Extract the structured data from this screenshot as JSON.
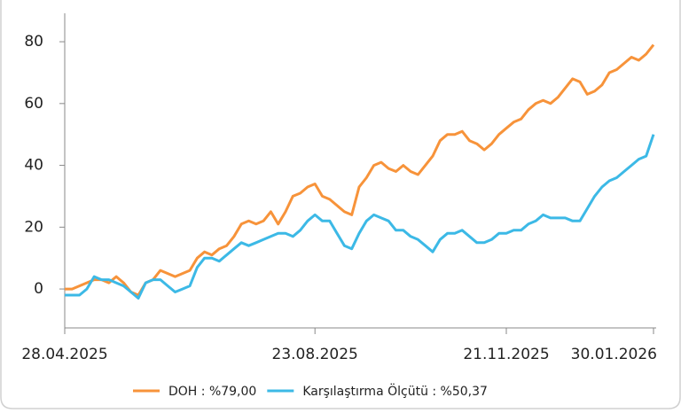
{
  "chart_data": {
    "type": "line",
    "categories": [
      "28.04.2025",
      null,
      null,
      null,
      null,
      null,
      null,
      null,
      null,
      null,
      null,
      null,
      null,
      null,
      null,
      null,
      null,
      null,
      null,
      null,
      null,
      null,
      null,
      null,
      null,
      null,
      null,
      null,
      null,
      null,
      null,
      null,
      null,
      null,
      "23.08.2025",
      null,
      null,
      null,
      null,
      null,
      null,
      null,
      null,
      null,
      null,
      null,
      null,
      null,
      null,
      null,
      null,
      null,
      null,
      null,
      null,
      null,
      null,
      null,
      null,
      null,
      "21.11.2025",
      null,
      null,
      null,
      null,
      null,
      null,
      null,
      null,
      null,
      null,
      null,
      null,
      null,
      null,
      null,
      null,
      null,
      null,
      null,
      "30.01.2026"
    ],
    "series": [
      {
        "name": "DOH : %79,00",
        "color": "#f7933a",
        "values": [
          0,
          0,
          1,
          2,
          3,
          3,
          2,
          4,
          2,
          -1,
          -2,
          2,
          3,
          6,
          5,
          4,
          5,
          6,
          10,
          12,
          11,
          13,
          14,
          17,
          21,
          22,
          21,
          22,
          25,
          21,
          25,
          30,
          31,
          33,
          34,
          30,
          29,
          27,
          25,
          24,
          33,
          36,
          40,
          41,
          39,
          38,
          40,
          38,
          37,
          40,
          43,
          48,
          50,
          50,
          51,
          48,
          47,
          45,
          47,
          50,
          52,
          54,
          55,
          58,
          60,
          61,
          60,
          62,
          65,
          68,
          67,
          63,
          64,
          66,
          70,
          71,
          73,
          75,
          74,
          76,
          79
        ]
      },
      {
        "name": "Karşılaştırma Ölçütü : %50,37",
        "color": "#3cb9e6",
        "values": [
          -2,
          -2,
          -2,
          0,
          4,
          3,
          3,
          2,
          1,
          -1,
          -3,
          2,
          3,
          3,
          1,
          -1,
          0,
          1,
          7,
          10,
          10,
          9,
          11,
          13,
          15,
          14,
          15,
          16,
          17,
          18,
          18,
          17,
          19,
          22,
          24,
          22,
          22,
          18,
          14,
          13,
          18,
          22,
          24,
          23,
          22,
          19,
          19,
          17,
          16,
          14,
          12,
          16,
          18,
          18,
          19,
          17,
          15,
          15,
          16,
          18,
          18,
          19,
          19,
          21,
          22,
          24,
          23,
          23,
          23,
          22,
          22,
          26,
          30,
          33,
          35,
          36,
          38,
          40,
          42,
          43,
          50
        ]
      }
    ],
    "ylim": [
      -12.6,
      89.2
    ],
    "yticks": [
      0,
      20,
      40,
      60,
      80
    ]
  }
}
